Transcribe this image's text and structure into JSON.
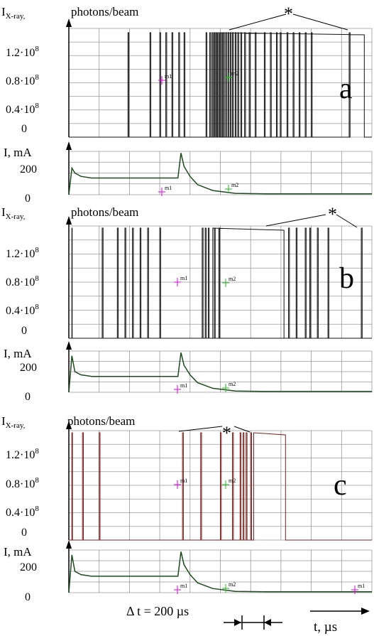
{
  "figure": {
    "delta_t_label": "Δ t = 200 µs",
    "time_axis_label": "t, µs",
    "grid_divisions": 10
  },
  "colors": {
    "grid": "#9a9a9a",
    "xray_trace_a": "#111111",
    "xray_trace_b": "#111111",
    "xray_trace_c": "#7a1f1f",
    "current_trace": "#1f4a1f",
    "cursor_m1": "#e000e0",
    "cursor_m2": "#22bb22"
  },
  "panels": [
    {
      "letter": "a",
      "xray_label": "I",
      "xray_label_sub": "X-ray,",
      "xray_unit": "photons/beam",
      "current_label": "I, mA",
      "asterisk": "*",
      "cursor_labels": [
        "m1",
        "m2"
      ]
    },
    {
      "letter": "b",
      "xray_label": "I",
      "xray_label_sub": "X-ray,",
      "xray_unit": "photons/beam",
      "current_label": "I, mA",
      "asterisk": "*",
      "cursor_labels": [
        "m1",
        "m2"
      ]
    },
    {
      "letter": "c",
      "xray_label": "I",
      "xray_label_sub": "X-ray,",
      "xray_unit": "photons/beam",
      "current_label": "I, mA",
      "asterisk": "*",
      "cursor_labels": [
        "m1",
        "m2",
        "m1"
      ]
    }
  ],
  "chart_data": [
    {
      "type": "line",
      "panel": "a",
      "ylabel": "I X-ray, photons/beam",
      "yticks": [
        "1.2·10^8",
        "0.8·10^8",
        "0.4·10^8",
        "0"
      ],
      "ylim": [
        0,
        145000000.0
      ],
      "xlim": [
        0,
        2000
      ],
      "x_unit": "µs",
      "series": [
        {
          "values_note": "",
          "x": [
            0,
            200,
            330,
            380,
            420,
            470,
            510,
            550,
            600,
            660,
            780,
            800,
            820,
            840,
            860,
            880,
            900,
            920,
            940,
            960,
            980,
            1000,
            1050,
            1100,
            1150,
            1200,
            1300,
            1400,
            1500,
            1600,
            1700,
            1780,
            1900
          ],
          "pulse_heights": [
            0,
            0,
            145000000.0,
            145000000.0,
            145000000.0,
            145000000.0,
            145000000.0,
            145000000.0,
            145000000.0,
            145000000.0,
            145000000.0,
            145000000.0,
            145000000.0,
            145000000.0,
            145000000.0,
            145000000.0,
            145000000.0,
            145000000.0,
            145000000.0,
            145000000.0,
            145000000.0,
            145000000.0,
            145000000.0,
            145000000.0,
            145000000.0,
            145000000.0,
            145000000.0,
            145000000.0,
            145000000.0,
            145000000.0,
            145000000.0,
            145000000.0,
            0
          ]
        }
      ]
    },
    {
      "type": "line",
      "panel": "a-current",
      "ylabel": "I, mA",
      "yticks": [
        "200",
        "0"
      ],
      "ylim": [
        0,
        260
      ],
      "xlim": [
        0,
        2000
      ],
      "series": [
        {
          "x": [
            0,
            20,
            40,
            80,
            150,
            300,
            600,
            720,
            740,
            760,
            800,
            850,
            950,
            1100,
            1300,
            2000
          ],
          "values": [
            0,
            160,
            130,
            110,
            100,
            100,
            100,
            100,
            250,
            170,
            110,
            60,
            25,
            8,
            5,
            5
          ]
        }
      ]
    },
    {
      "type": "line",
      "panel": "b",
      "ylabel": "I X-ray, photons/beam",
      "yticks": [
        "1.2·10^8",
        "0.8·10^8",
        "0.4·10^8",
        "0"
      ],
      "ylim": [
        0,
        145000000.0
      ],
      "xlim": [
        0,
        2000
      ]
    },
    {
      "type": "line",
      "panel": "b-current",
      "ylabel": "I, mA",
      "yticks": [
        "200",
        "0"
      ],
      "ylim": [
        0,
        260
      ],
      "xlim": [
        0,
        2000
      ],
      "series": [
        {
          "x": [
            0,
            20,
            40,
            80,
            150,
            300,
            600,
            720,
            740,
            760,
            800,
            850,
            950,
            1100,
            1300,
            2000
          ],
          "values": [
            0,
            230,
            130,
            110,
            100,
            100,
            100,
            100,
            250,
            170,
            110,
            60,
            25,
            8,
            5,
            5
          ]
        }
      ]
    },
    {
      "type": "line",
      "panel": "c",
      "ylabel": "I X-ray, photons/beam",
      "yticks": [
        "1.2·10^8",
        "0.8·10^8",
        "0.4·10^8",
        "0"
      ],
      "ylim": [
        0,
        145000000.0
      ],
      "xlim": [
        0,
        2000
      ]
    },
    {
      "type": "line",
      "panel": "c-current",
      "ylabel": "I, mA",
      "yticks": [
        "200",
        "0"
      ],
      "ylim": [
        0,
        260
      ],
      "xlim": [
        0,
        2000
      ],
      "series": [
        {
          "x": [
            0,
            20,
            40,
            80,
            150,
            300,
            600,
            720,
            740,
            760,
            800,
            850,
            950,
            1100,
            1300,
            2000
          ],
          "values": [
            0,
            230,
            130,
            110,
            100,
            100,
            100,
            100,
            250,
            170,
            110,
            60,
            25,
            8,
            5,
            5
          ]
        }
      ]
    }
  ]
}
